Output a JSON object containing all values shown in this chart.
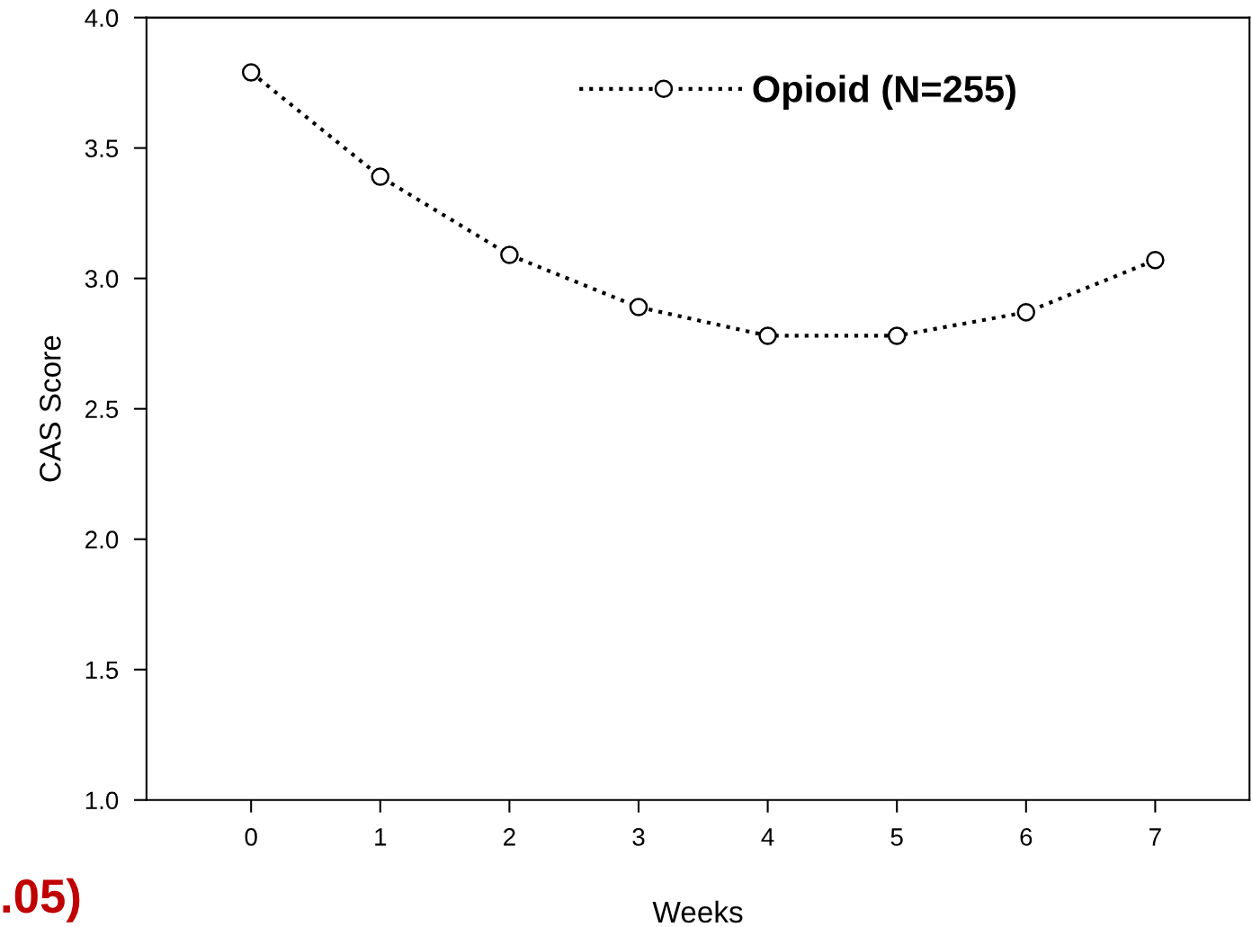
{
  "chart_data": {
    "type": "line",
    "xlabel": "Weeks",
    "ylabel": "CAS Score",
    "x": [
      0,
      1,
      2,
      3,
      4,
      5,
      6,
      7
    ],
    "series": [
      {
        "name": "Opioid (N=255)",
        "color": "#000000",
        "values": [
          3.79,
          3.39,
          3.09,
          2.89,
          2.78,
          2.78,
          2.87,
          3.07
        ]
      }
    ],
    "xlim": [
      -0.81,
      7.73
    ],
    "xticks": [
      0,
      1,
      2,
      3,
      4,
      5,
      6,
      7
    ],
    "ylim": [
      1.0,
      4.0
    ],
    "yticks": [
      {
        "value": 1.0,
        "label": "1.0"
      },
      {
        "value": 1.5,
        "label": "1.5"
      },
      {
        "value": 2.0,
        "label": "2.0"
      },
      {
        "value": 2.5,
        "label": "2.5"
      },
      {
        "value": 3.0,
        "label": "3.0"
      },
      {
        "value": 3.5,
        "label": "3.5"
      },
      {
        "value": 4.0,
        "label": "4.0"
      }
    ],
    "marker": "circle",
    "line_style": "dotted",
    "legend": "top right",
    "grid": false,
    "annotations": [
      ".05)"
    ]
  }
}
